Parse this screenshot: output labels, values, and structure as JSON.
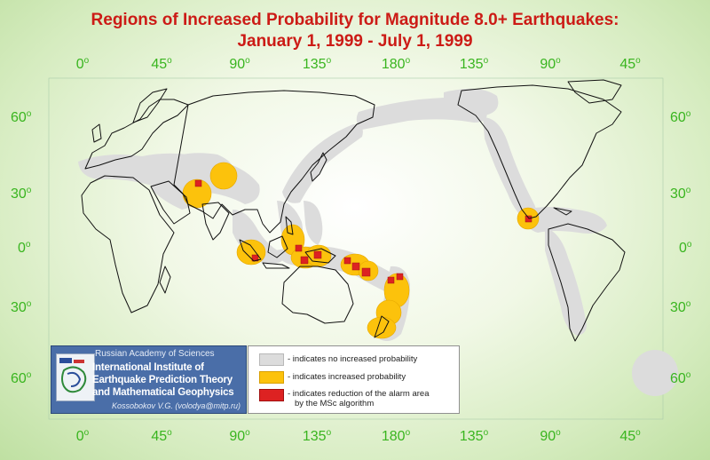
{
  "title": {
    "line1": "Regions of Increased Probability for Magnitude 8.0+ Earthquakes:",
    "line2": "January 1, 1999 - July 1, 1999"
  },
  "longitude_labels": [
    "0",
    "45",
    "90",
    "135",
    "180",
    "135",
    "90",
    "45"
  ],
  "latitude_labels": [
    "60",
    "30",
    "0",
    "30",
    "60"
  ],
  "degree_symbol": "o",
  "institute": {
    "academy": "Russian Academy of Sciences",
    "name_line1": "International Institute of",
    "name_line2": "Earthquake Prediction Theory",
    "name_line3": "and Mathematical Geophysics",
    "author": "Kossobokov V.G. (volodya@mitp.ru)"
  },
  "legend": {
    "gray": "- indicates no increased probability",
    "yellow": "- indicates increased probability",
    "red_line1": "- indicates reduction of the alarm area",
    "red_line2": "by the MSc algorithm"
  },
  "colors": {
    "title": "#cc1b16",
    "axis_labels": "#39b51f",
    "no_increase": "#dcdcdc",
    "increased": "#fcc20c",
    "reduced": "#dd2222",
    "coastline": "#111111"
  }
}
